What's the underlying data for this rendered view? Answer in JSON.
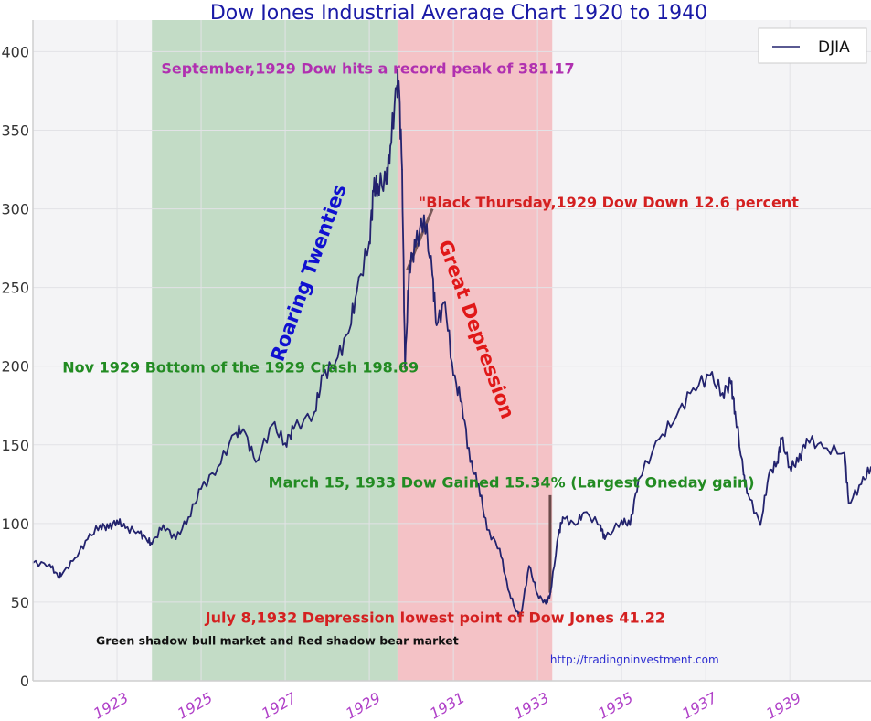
{
  "chart_data": {
    "type": "line",
    "title": "Dow Jones Industrial Average Chart 1920 to 1940",
    "xlabel": "",
    "ylabel": "",
    "xlim": [
      1921.0,
      1940.93
    ],
    "ylim": [
      0,
      420
    ],
    "grid": true,
    "legend": {
      "placement": "top-right",
      "entries": [
        "DJIA"
      ]
    },
    "yticks": [
      0,
      50,
      100,
      150,
      200,
      250,
      300,
      350,
      400
    ],
    "xticks": [
      1923,
      1925,
      1927,
      1929,
      1931,
      1933,
      1935,
      1937,
      1939
    ],
    "xtick_labels": [
      "1923",
      "1925",
      "1927",
      "1929",
      "1931",
      "1933",
      "1935",
      "1937",
      "1939"
    ],
    "shaded_regions": [
      {
        "name": "bull-market",
        "label": "Roaring Twenties",
        "start": 1923.83,
        "end": 1929.67,
        "color": "#c3dcc6"
      },
      {
        "name": "bear-market",
        "label": "Great Depression",
        "start": 1929.67,
        "end": 1933.35,
        "color": "#f4c2c6"
      }
    ],
    "series": [
      {
        "name": "DJIA",
        "color": "#23236e",
        "x": [
          1921.0,
          1921.4,
          1921.6,
          1921.7,
          1922.0,
          1922.3,
          1922.6,
          1922.8,
          1923.0,
          1923.2,
          1923.5,
          1923.7,
          1923.83,
          1924.1,
          1924.4,
          1924.7,
          1925.0,
          1925.4,
          1925.8,
          1926.0,
          1926.3,
          1926.7,
          1927.0,
          1927.2,
          1927.7,
          1927.9,
          1928.2,
          1928.5,
          1928.7,
          1929.0,
          1929.1,
          1929.2,
          1929.4,
          1929.5,
          1929.65,
          1929.7,
          1929.78,
          1929.85,
          1929.95,
          1930.1,
          1930.3,
          1930.5,
          1930.6,
          1930.8,
          1931.0,
          1931.2,
          1931.4,
          1931.6,
          1931.8,
          1932.1,
          1932.3,
          1932.5,
          1932.6,
          1932.8,
          1933.0,
          1933.2,
          1933.3,
          1933.5,
          1933.6,
          1933.9,
          1934.1,
          1934.5,
          1934.6,
          1935.0,
          1935.2,
          1935.4,
          1935.9,
          1936.3,
          1936.7,
          1937.1,
          1937.4,
          1937.6,
          1937.7,
          1937.9,
          1938.0,
          1938.3,
          1938.5,
          1938.7,
          1938.8,
          1939.0,
          1939.2,
          1939.4,
          1939.8,
          1940.3,
          1940.4,
          1940.7,
          1940.93
        ],
        "y": [
          75,
          74,
          66,
          68,
          78,
          90,
          99,
          97,
          102,
          97,
          95,
          90,
          87,
          99,
          90,
          104,
          122,
          136,
          157,
          160,
          139,
          163,
          151,
          160,
          171,
          194,
          203,
          221,
          247,
          279,
          311,
          316,
          316,
          340,
          377,
          381.17,
          325,
          198.69,
          264,
          276,
          296,
          258,
          226,
          241,
          194,
          177,
          139,
          125,
          96,
          84,
          58,
          44,
          41.22,
          73,
          55,
          49,
          55,
          93,
          104,
          99,
          107,
          99,
          90,
          102,
          99,
          128,
          154,
          168,
          186,
          194,
          183,
          189,
          171,
          131,
          119,
          99,
          131,
          139,
          154,
          136,
          139,
          154,
          148,
          145,
          113,
          125,
          136
        ]
      }
    ],
    "annotations": [
      {
        "name": "peak-annotation",
        "text": "September,1929 Dow  hits a record peak of 381.17",
        "color": "#b030b0",
        "x": 1924.05,
        "y": 386
      },
      {
        "name": "black-thursday-annotation",
        "text": "\"Black Thursday,1929 Dow Down 12.6 percent",
        "color": "#d42020",
        "x": 1930.17,
        "y": 301
      },
      {
        "name": "roaring-twenties-label",
        "text": "Roaring Twenties",
        "color": "#1010d0",
        "x": 1927.7,
        "y": 258,
        "rotation": -70
      },
      {
        "name": "great-depression-label",
        "text": "Great Depression",
        "color": "#e01818",
        "x": 1931.4,
        "y": 222,
        "rotation": 70
      },
      {
        "name": "crash-bottom-annotation",
        "text": "Nov 1929 Bottom of the 1929 Crash  198.69",
        "color": "#228b22",
        "x": 1921.7,
        "y": 196
      },
      {
        "name": "largest-gain-annotation",
        "text": "March 15, 1933 Dow Gained 15.34% (Largest Oneday gain)",
        "color": "#228b22",
        "x": 1926.6,
        "y": 123
      },
      {
        "name": "lowest-point-annotation",
        "text": "July 8,1932 Depression lowest point of Dow Jones  41.22",
        "color": "#d42020",
        "x": 1925.1,
        "y": 37
      },
      {
        "name": "shading-note",
        "text": "Green shadow bull market and Red shadow bear market",
        "color": "#111111",
        "x": 1922.5,
        "y": 23
      },
      {
        "name": "source-url",
        "text": "http://tradingninvestment.com",
        "color": "#2a2ad0",
        "x": 1933.3,
        "y": 11
      }
    ],
    "marker_lines": [
      {
        "name": "black-thursday-line",
        "x1": 1929.9,
        "y1": 261,
        "x2": 1930.5,
        "y2": 300,
        "color": "#7a5a5a"
      },
      {
        "name": "largest-gain-line",
        "x1": 1933.3,
        "y1": 56,
        "x2": 1933.3,
        "y2": 118,
        "color": "#6a4a4a"
      }
    ]
  }
}
